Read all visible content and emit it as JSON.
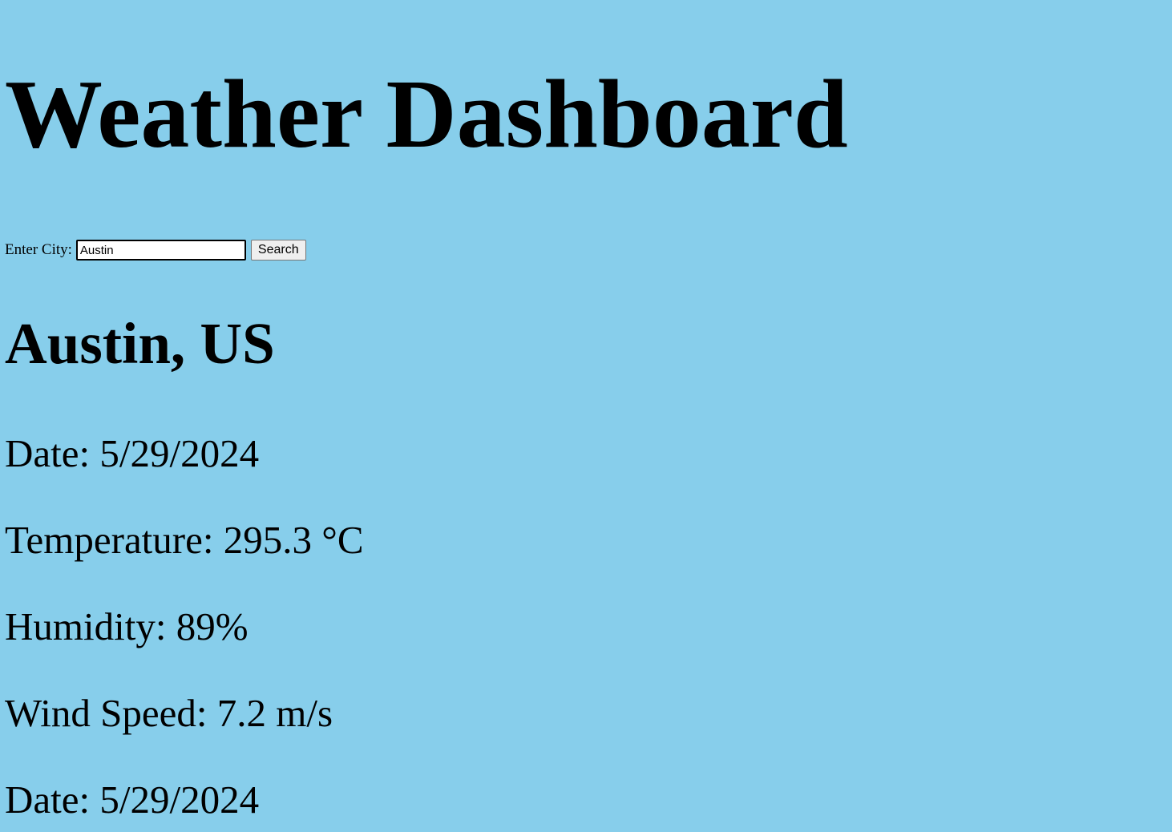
{
  "header": {
    "title": "Weather Dashboard"
  },
  "search": {
    "label": "Enter City:",
    "value": "Austin",
    "button_label": "Search"
  },
  "current": {
    "city": "Austin, US",
    "date": "Date: 5/29/2024",
    "temperature": "Temperature: 295.3 °C",
    "humidity": "Humidity: 89%",
    "wind_speed": "Wind Speed: 7.2 m/s"
  },
  "forecast": [
    {
      "date": "Date: 5/29/2024"
    }
  ]
}
